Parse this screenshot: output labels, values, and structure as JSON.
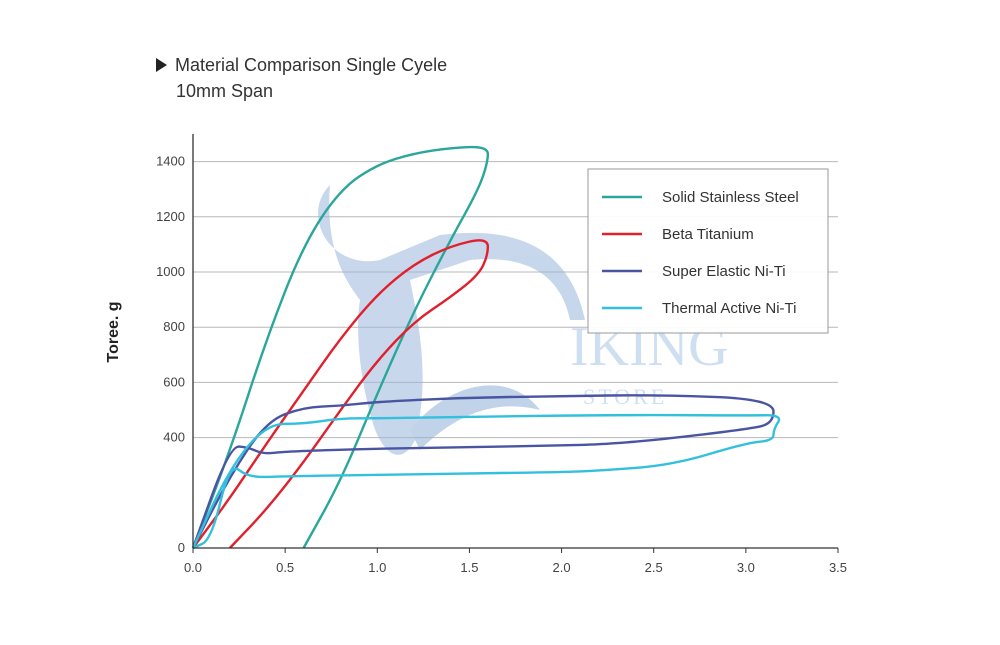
{
  "heading": {
    "title": "Material Comparison Single Cyele",
    "subtitle": "10mm Span"
  },
  "watermark": {
    "brand": "IKING",
    "sub": "STORE",
    "icon": "viking-helmet-icon"
  },
  "chart_data": {
    "type": "line",
    "title": "Material Comparison Single Cyele",
    "subtitle": "10mm Span",
    "xlabel": "",
    "ylabel": "Toree. g",
    "xlim": [
      0,
      3.5
    ],
    "ylim": [
      0,
      1500
    ],
    "x_ticks": [
      "0.0",
      "0.5",
      "1.0",
      "1.5",
      "2.0",
      "2.5",
      "3.0",
      "3.5"
    ],
    "y_ticks": [
      "0",
      "400",
      "600",
      "800",
      "1000",
      "1200",
      "1400"
    ],
    "grid": true,
    "legend_position": "top-right",
    "series": [
      {
        "name": "Solid Stainless Steel",
        "color": "#2aa69a",
        "points": [
          [
            0,
            0
          ],
          [
            0.2,
            350
          ],
          [
            0.4,
            760
          ],
          [
            0.6,
            1100
          ],
          [
            0.8,
            1300
          ],
          [
            1.0,
            1390
          ],
          [
            1.2,
            1430
          ],
          [
            1.4,
            1450
          ],
          [
            1.6,
            1455
          ],
          [
            1.6,
            1400
          ],
          [
            1.55,
            1300
          ],
          [
            1.4,
            1120
          ],
          [
            1.2,
            860
          ],
          [
            1.0,
            560
          ],
          [
            0.8,
            240
          ],
          [
            0.6,
            0
          ]
        ]
      },
      {
        "name": "Beta Titanium",
        "color": "#e0202c",
        "points": [
          [
            0,
            0
          ],
          [
            0.2,
            180
          ],
          [
            0.4,
            380
          ],
          [
            0.6,
            570
          ],
          [
            0.8,
            760
          ],
          [
            1.0,
            920
          ],
          [
            1.2,
            1030
          ],
          [
            1.4,
            1095
          ],
          [
            1.6,
            1125
          ],
          [
            1.6,
            1060
          ],
          [
            1.55,
            990
          ],
          [
            1.4,
            910
          ],
          [
            1.2,
            820
          ],
          [
            1.0,
            680
          ],
          [
            0.8,
            500
          ],
          [
            0.6,
            310
          ],
          [
            0.4,
            140
          ],
          [
            0.2,
            0
          ]
        ]
      },
      {
        "name": "Super Elastic Ni-Ti",
        "color": "#4a55a2",
        "points": [
          [
            0,
            0
          ],
          [
            0.2,
            260
          ],
          [
            0.4,
            460
          ],
          [
            0.6,
            510
          ],
          [
            0.8,
            515
          ],
          [
            1.0,
            530
          ],
          [
            1.5,
            545
          ],
          [
            2.0,
            550
          ],
          [
            2.5,
            555
          ],
          [
            3.15,
            540
          ],
          [
            3.15,
            450
          ],
          [
            3.0,
            430
          ],
          [
            2.5,
            390
          ],
          [
            2.2,
            375
          ],
          [
            2.0,
            372
          ],
          [
            1.5,
            365
          ],
          [
            1.0,
            360
          ],
          [
            0.5,
            350
          ],
          [
            0.38,
            340
          ],
          [
            0.3,
            365
          ],
          [
            0.2,
            370
          ],
          [
            0,
            0
          ]
        ]
      },
      {
        "name": "Thermal Active Ni-Ti",
        "color": "#33c0de",
        "points": [
          [
            0,
            0
          ],
          [
            0.2,
            290
          ],
          [
            0.4,
            450
          ],
          [
            0.6,
            450
          ],
          [
            0.8,
            470
          ],
          [
            1.0,
            470
          ],
          [
            1.5,
            475
          ],
          [
            2.0,
            480
          ],
          [
            2.5,
            482
          ],
          [
            3.0,
            480
          ],
          [
            3.2,
            482
          ],
          [
            3.15,
            430
          ],
          [
            3.15,
            390
          ],
          [
            3.0,
            380
          ],
          [
            2.6,
            300
          ],
          [
            2.2,
            280
          ],
          [
            2.0,
            275
          ],
          [
            1.5,
            270
          ],
          [
            1.0,
            265
          ],
          [
            0.5,
            260
          ],
          [
            0.3,
            255
          ],
          [
            0.2,
            310
          ],
          [
            0.1,
            30
          ],
          [
            0,
            0
          ]
        ]
      }
    ]
  }
}
